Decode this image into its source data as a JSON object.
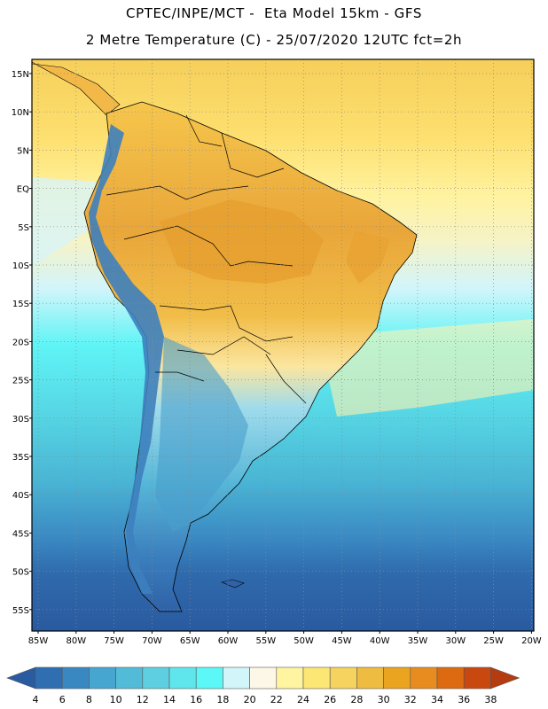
{
  "header": {
    "line1": "CPTEC/INPE/MCT -  Eta Model 15km - GFS",
    "line2": "2 Metre Temperature (C) - 25/07/2020 12UTC fct=2h"
  },
  "axes": {
    "lat_ticks": [
      "15N",
      "10N",
      "5N",
      "EQ",
      "5S",
      "10S",
      "15S",
      "20S",
      "25S",
      "30S",
      "35S",
      "40S",
      "45S",
      "50S",
      "55S"
    ],
    "lon_ticks": [
      "85W",
      "80W",
      "75W",
      "70W",
      "65W",
      "60W",
      "55W",
      "50W",
      "45W",
      "40W",
      "35W",
      "30W",
      "25W",
      "20W"
    ]
  },
  "colorbar": {
    "labels": [
      "4",
      "6",
      "8",
      "10",
      "12",
      "14",
      "16",
      "18",
      "20",
      "22",
      "24",
      "26",
      "28",
      "30",
      "32",
      "34",
      "36",
      "38"
    ],
    "colors": [
      "#2a5aa0",
      "#2f6fb1",
      "#3a88c2",
      "#47a6cf",
      "#52bcd8",
      "#5dcfe0",
      "#5fe6ec",
      "#5cf8f8",
      "#d2f5fa",
      "#fcf7e6",
      "#fff5a0",
      "#fde774",
      "#f6d35e",
      "#eebc40",
      "#eaa420",
      "#e98c20",
      "#dd6a10",
      "#c94810",
      "#b43c10"
    ]
  },
  "palette": {
    "ocean_cold": "#2a5aa0",
    "ocean_cool": "#4db5d6",
    "ocean_mid": "#5ee8ee",
    "ocean_warm": "#fff5a0",
    "ocean_hot": "#f6d35e",
    "land_hot": "#e9a83a",
    "land_warm": "#f6cd55",
    "andes_cold": "#3a7cbc",
    "border": "#000000"
  }
}
